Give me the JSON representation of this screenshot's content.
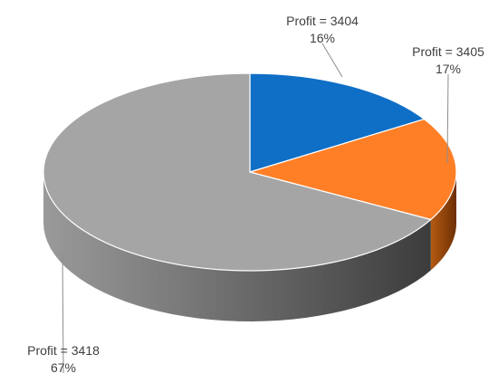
{
  "chart_data": {
    "type": "pie",
    "three_d": true,
    "series": [
      {
        "name": "",
        "slices": [
          {
            "label": "Profit = 3404",
            "percent_label": "16%",
            "percent": 16,
            "color": "#0F6FC6"
          },
          {
            "label": "Profit = 3405",
            "percent_label": "17%",
            "percent": 17,
            "color": "#FF7F27"
          },
          {
            "label": "Profit = 3418",
            "percent_label": "67%",
            "percent": 67,
            "color": "#A5A5A5"
          }
        ]
      }
    ],
    "title": "",
    "legend": "none"
  }
}
